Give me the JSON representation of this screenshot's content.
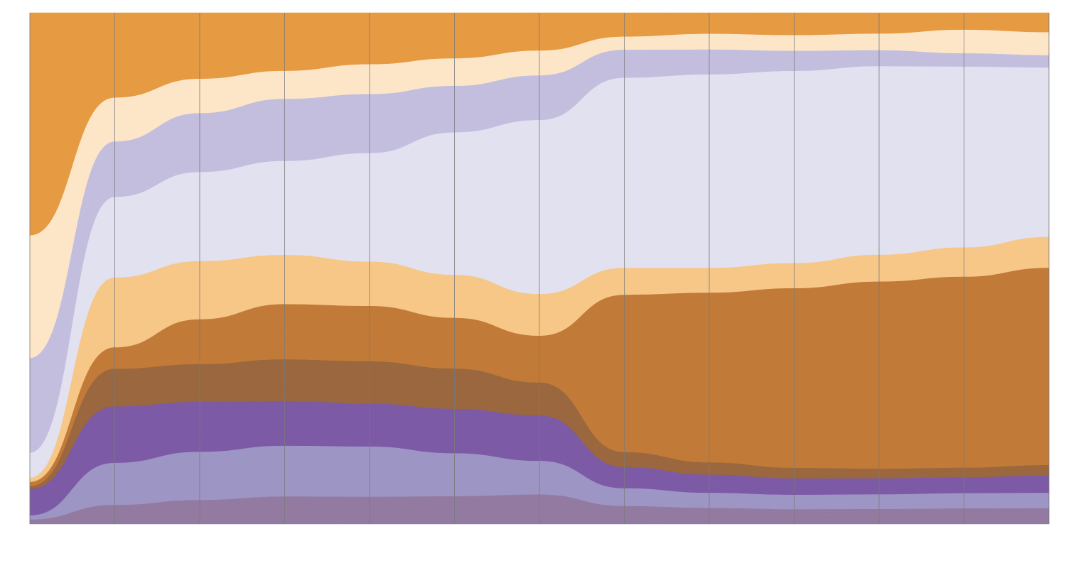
{
  "chart_data": {
    "type": "area",
    "subtype": "alluvial-streamgraph",
    "title": "",
    "xlabel": "",
    "ylabel": "",
    "x_steps": 13,
    "grid": {
      "vertical_lines": true,
      "color": "#7a7a7a"
    },
    "legend": "none",
    "series": [
      {
        "color": "#e69a42",
        "values": [
          7.3,
          2.3,
          1.2,
          1.3,
          1.0,
          0.9,
          0.4,
          0.5,
          0.3,
          0.4,
          0.3,
          0.3,
          0.3
        ]
      },
      {
        "color": "#e69a42",
        "values": [
          8.0,
          0.9,
          1.3,
          1.3,
          1.9,
          1.5,
          1.2,
          0.9,
          0.7,
          0.5,
          0.6,
          0.4,
          0.4
        ]
      },
      {
        "color": "#e69a42",
        "values": [
          0.7,
          6.3,
          5.6,
          5.1,
          4.2,
          4.1,
          3.6,
          2.8,
          2.5,
          2.7,
          2.4,
          2.0,
          2.5
        ]
      },
      {
        "color": "#fde6c8",
        "values": [
          8.6,
          0.4,
          0.1,
          0.3,
          0.3,
          1.2,
          1.8,
          0.3,
          0.7,
          0.8,
          0.7,
          2.0,
          2.3
        ]
      },
      {
        "color": "#fde6c8",
        "values": [
          0.1,
          2.9,
          2.5,
          2.2,
          2.8,
          2.2,
          1.3,
          1.8,
          1.6,
          1.3,
          1.6,
          1.5,
          1.2
        ]
      },
      {
        "color": "#fde6c8",
        "values": [
          0.1,
          1.6,
          1.6,
          1.2,
          1.0,
          0.5,
          0.3,
          0.2,
          0.3,
          0.4,
          0.3,
          0.2,
          0.2
        ]
      },
      {
        "color": "#c3bede",
        "values": [
          6.6,
          4.1,
          4.0,
          3.9,
          3.4,
          2.5,
          2.3,
          1.9,
          1.5,
          1.0,
          0.7,
          0.6,
          0.6
        ]
      },
      {
        "color": "#c3bede",
        "values": [
          0.1,
          0.3,
          1.2,
          2.1,
          2.8,
          2.6,
          2.2,
          1.8,
          1.6,
          1.4,
          1.2,
          1.0,
          0.9
        ]
      },
      {
        "color": "#c3bede",
        "values": [
          0.1,
          1.8,
          2.0,
          2.2,
          1.9,
          1.5,
          1.6,
          1.2,
          1.0,
          0.8,
          0.6,
          0.5,
          0.5
        ]
      },
      {
        "color": "#e1e1ef",
        "values": [
          1.7,
          8.6,
          9.4,
          10.4,
          12.4,
          18.0,
          22.0,
          32.0,
          31.0,
          30.0,
          29.0,
          28.0,
          27.0
        ]
      },
      {
        "color": "#e1e1ef",
        "values": [
          0.1,
          0.4,
          1.5,
          2.0,
          2.5,
          2.2,
          1.8,
          1.2,
          0.9,
          0.6,
          0.5,
          0.4,
          0.4
        ]
      },
      {
        "color": "#f7c787",
        "values": [
          0.1,
          4.9,
          4.7,
          4.2,
          3.7,
          3.4,
          3.1,
          2.6,
          2.4,
          2.7,
          3.0,
          3.3,
          3.6
        ]
      },
      {
        "color": "#f7c787",
        "values": [
          0.1,
          2.8,
          2.2,
          1.7,
          1.2,
          0.9,
          0.6,
          0.5,
          0.4,
          0.3,
          0.4,
          0.6,
          0.8
        ]
      },
      {
        "color": "#f7c787",
        "values": [
          0.1,
          0.1,
          0.2,
          0.6,
          1.2,
          1.8,
          2.0,
          1.6,
          1.3,
          1.0,
          0.8,
          0.7,
          0.6
        ]
      },
      {
        "color": "#c17a38",
        "values": [
          0.1,
          0.4,
          3.2,
          3.6,
          3.8,
          3.3,
          3.0,
          25.0,
          26.0,
          27.0,
          28.0,
          29.0,
          31.0
        ]
      },
      {
        "color": "#c17a38",
        "values": [
          0.1,
          1.9,
          2.0,
          2.2,
          1.8,
          1.4,
          1.1,
          0.9,
          0.8,
          0.7,
          0.6,
          0.5,
          0.4
        ]
      },
      {
        "color": "#c17a38",
        "values": [
          0.1,
          0.1,
          0.3,
          1.5,
          2.0,
          2.5,
          2.3,
          1.6,
          1.2,
          0.9,
          0.7,
          0.5,
          0.5
        ]
      },
      {
        "color": "#9a673e",
        "values": [
          0.1,
          4.1,
          4.2,
          3.9,
          3.3,
          2.6,
          1.9,
          1.1,
          0.9,
          0.8,
          0.7,
          0.6,
          0.6
        ]
      },
      {
        "color": "#9a673e",
        "values": [
          0.1,
          0.1,
          0.4,
          1.6,
          2.5,
          3.1,
          2.6,
          1.5,
          1.1,
          0.9,
          0.8,
          0.9,
          1.1
        ]
      },
      {
        "color": "#7d5aa6",
        "values": [
          1.7,
          6.1,
          4.6,
          3.6,
          2.7,
          2.1,
          2.4,
          1.6,
          1.3,
          1.2,
          1.1,
          1.0,
          1.1
        ]
      },
      {
        "color": "#7d5aa6",
        "values": [
          0.1,
          0.1,
          1.4,
          2.0,
          2.4,
          2.9,
          2.6,
          1.2,
          1.0,
          0.8,
          0.9,
          1.1,
          1.3
        ]
      },
      {
        "color": "#7d5aa6",
        "values": [
          0.1,
          0.1,
          0.1,
          0.3,
          0.8,
          1.3,
          1.2,
          0.9,
          0.7,
          0.6,
          0.5,
          0.4,
          0.4
        ]
      },
      {
        "color": "#9d95c4",
        "values": [
          0.1,
          4.4,
          4.1,
          3.6,
          3.1,
          2.4,
          1.9,
          1.3,
          1.0,
          0.9,
          0.8,
          0.7,
          0.6
        ]
      },
      {
        "color": "#9d95c4",
        "values": [
          0.1,
          0.2,
          1.3,
          2.1,
          2.6,
          2.4,
          1.8,
          1.2,
          1.0,
          0.9,
          0.9,
          1.0,
          1.1
        ]
      },
      {
        "color": "#9d95c4",
        "values": [
          0.1,
          0.1,
          0.5,
          1.0,
          1.2,
          1.3,
          0.9,
          0.6,
          0.5,
          0.5,
          0.6,
          0.7,
          0.8
        ]
      },
      {
        "color": "#937aa1",
        "values": [
          0.1,
          1.9,
          2.5,
          2.6,
          2.1,
          1.6,
          1.5,
          1.1,
          0.9,
          0.8,
          0.9,
          1.1,
          1.2
        ]
      },
      {
        "color": "#937aa1",
        "values": [
          0.1,
          0.1,
          0.3,
          0.8,
          1.2,
          1.8,
          2.0,
          1.6,
          1.4,
          1.2,
          1.1,
          1.0,
          1.0
        ]
      },
      {
        "color": "#937aa1",
        "values": [
          0.1,
          0.1,
          0.1,
          0.2,
          0.4,
          0.5,
          0.5,
          0.4,
          0.3,
          0.3,
          0.3,
          0.3,
          0.3
        ]
      }
    ]
  }
}
